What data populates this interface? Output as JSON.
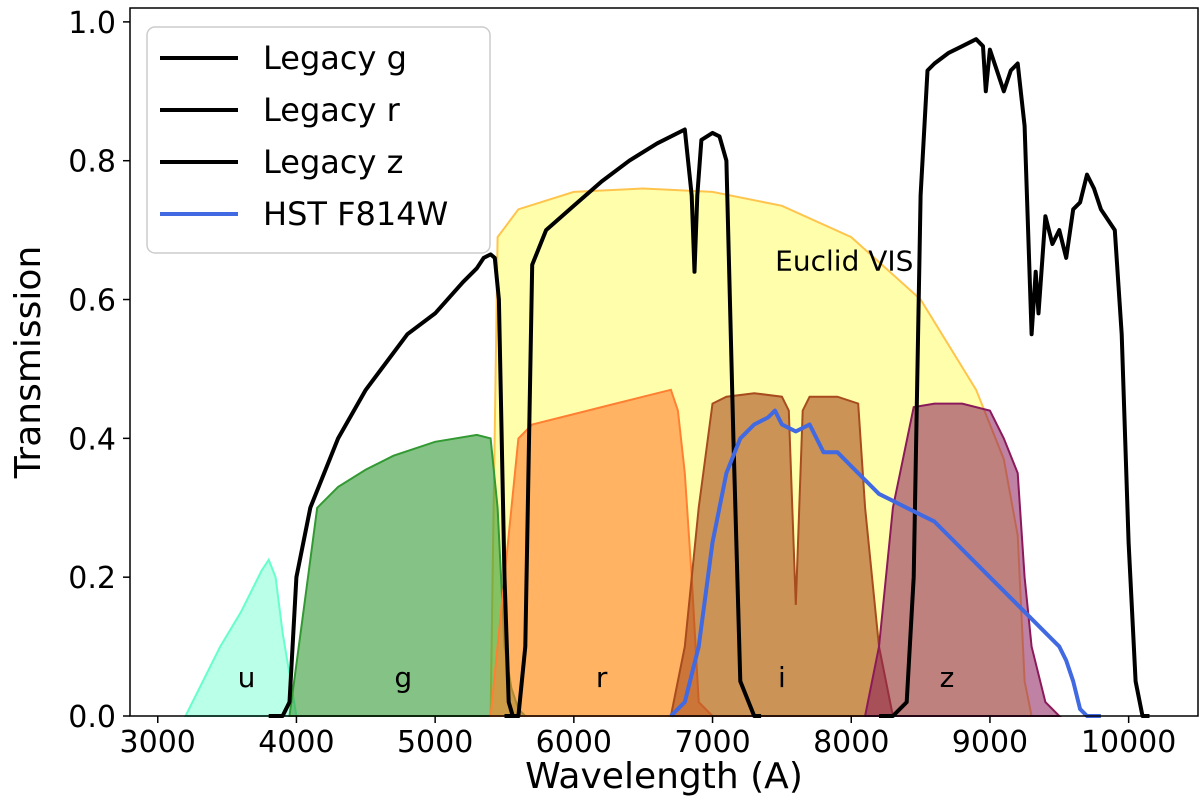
{
  "chart_data": {
    "type": "line",
    "title": "",
    "xlabel": "Wavelength (A)",
    "ylabel": "Transmission",
    "xlim": [
      2800,
      10500
    ],
    "ylim": [
      0.0,
      1.02
    ],
    "xticks": [
      3000,
      4000,
      5000,
      6000,
      7000,
      8000,
      9000,
      10000
    ],
    "xtick_labels": [
      "3000",
      "4000",
      "5000",
      "6000",
      "7000",
      "8000",
      "9000",
      "10000"
    ],
    "yticks": [
      0.0,
      0.2,
      0.4,
      0.6,
      0.8,
      1.0
    ],
    "ytick_labels": [
      "0.0",
      "0.2",
      "0.4",
      "0.6",
      "0.8",
      "1.0"
    ],
    "legend": {
      "placement": "top-left",
      "entries": [
        {
          "name": "Legacy g",
          "color": "#000000"
        },
        {
          "name": "Legacy r",
          "color": "#000000"
        },
        {
          "name": "Legacy z",
          "color": "#000000"
        },
        {
          "name": "HST F814W",
          "color": "#4169e1"
        }
      ]
    },
    "filled_bands": [
      {
        "name": "Euclid VIS",
        "label": "Euclid VIS",
        "fill": "#ffff66",
        "stroke": "#ffc44d",
        "alpha": 0.55,
        "label_at": [
          7950,
          0.63
        ],
        "x": [
          5400,
          5450,
          5600,
          6000,
          6500,
          7000,
          7500,
          8000,
          8500,
          8900,
          9100,
          9200,
          9250,
          9300
        ],
        "y": [
          0.0,
          0.69,
          0.73,
          0.755,
          0.76,
          0.755,
          0.735,
          0.69,
          0.6,
          0.47,
          0.37,
          0.26,
          0.05,
          0.0
        ]
      },
      {
        "name": "u",
        "label": "u",
        "fill": "#66ffcc",
        "stroke": "#66ffcc",
        "alpha": 0.45,
        "label_at": [
          3640,
          0.03
        ],
        "x": [
          3200,
          3300,
          3450,
          3600,
          3750,
          3800,
          3850,
          3900,
          4000
        ],
        "y": [
          0.0,
          0.04,
          0.1,
          0.15,
          0.21,
          0.225,
          0.2,
          0.12,
          0.0
        ]
      },
      {
        "name": "g",
        "label": "g",
        "fill": "#339933",
        "stroke": "#339933",
        "alpha": 0.6,
        "label_at": [
          4770,
          0.03
        ],
        "x": [
          3950,
          4050,
          4150,
          4300,
          4500,
          4700,
          5000,
          5300,
          5400,
          5450,
          5500,
          5550,
          5600,
          5650
        ],
        "y": [
          0.0,
          0.15,
          0.3,
          0.33,
          0.355,
          0.375,
          0.395,
          0.405,
          0.4,
          0.3,
          0.1,
          0.04,
          0.01,
          0.0
        ]
      },
      {
        "name": "r",
        "label": "r",
        "fill": "#ff8033",
        "stroke": "#ff8033",
        "alpha": 0.6,
        "label_at": [
          6200,
          0.03
        ],
        "x": [
          5400,
          5500,
          5600,
          5700,
          6000,
          6300,
          6500,
          6700,
          6750,
          6800,
          6850,
          6900,
          7000
        ],
        "y": [
          0.0,
          0.2,
          0.4,
          0.42,
          0.435,
          0.45,
          0.46,
          0.47,
          0.44,
          0.35,
          0.2,
          0.02,
          0.0
        ]
      },
      {
        "name": "i",
        "label": "i",
        "fill": "#a84b1e",
        "stroke": "#a84b1e",
        "alpha": 0.6,
        "label_at": [
          7500,
          0.03
        ],
        "x": [
          6700,
          6800,
          6900,
          7000,
          7100,
          7300,
          7500,
          7550,
          7600,
          7650,
          7700,
          7900,
          8050,
          8100,
          8200,
          8300
        ],
        "y": [
          0.0,
          0.1,
          0.3,
          0.45,
          0.46,
          0.465,
          0.46,
          0.44,
          0.16,
          0.44,
          0.46,
          0.46,
          0.45,
          0.3,
          0.1,
          0.0
        ]
      },
      {
        "name": "z",
        "label": "z",
        "fill": "#8b1a5a",
        "stroke": "#8b1a5a",
        "alpha": 0.55,
        "label_at": [
          8690,
          0.03
        ],
        "x": [
          8100,
          8200,
          8300,
          8450,
          8600,
          8800,
          9000,
          9100,
          9200,
          9250,
          9300,
          9400,
          9500
        ],
        "y": [
          0.0,
          0.1,
          0.3,
          0.445,
          0.45,
          0.45,
          0.44,
          0.4,
          0.35,
          0.2,
          0.1,
          0.02,
          0.0
        ]
      }
    ],
    "series": [
      {
        "name": "Legacy g",
        "color": "#000000",
        "x": [
          3800,
          3900,
          3950,
          4000,
          4100,
          4300,
          4500,
          4800,
          5000,
          5200,
          5300,
          5350,
          5400,
          5430,
          5460,
          5500,
          5530,
          5560,
          5600
        ],
        "y": [
          0.0,
          0.0,
          0.02,
          0.2,
          0.3,
          0.4,
          0.47,
          0.55,
          0.58,
          0.625,
          0.645,
          0.66,
          0.665,
          0.66,
          0.6,
          0.2,
          0.02,
          0.0,
          0.0
        ]
      },
      {
        "name": "Legacy r",
        "color": "#000000",
        "x": [
          5500,
          5600,
          5650,
          5700,
          5800,
          6000,
          6200,
          6400,
          6600,
          6800,
          6850,
          6870,
          6890,
          6920,
          7000,
          7050,
          7100,
          7150,
          7200,
          7300,
          7350
        ],
        "y": [
          0.0,
          0.0,
          0.1,
          0.65,
          0.7,
          0.735,
          0.77,
          0.8,
          0.825,
          0.845,
          0.75,
          0.64,
          0.75,
          0.83,
          0.84,
          0.835,
          0.8,
          0.4,
          0.05,
          0.0,
          0.0
        ]
      },
      {
        "name": "Legacy z",
        "color": "#000000",
        "x": [
          8200,
          8300,
          8400,
          8450,
          8500,
          8550,
          8600,
          8700,
          8800,
          8900,
          8950,
          8970,
          9000,
          9050,
          9100,
          9150,
          9200,
          9250,
          9300,
          9330,
          9350,
          9400,
          9450,
          9500,
          9550,
          9600,
          9650,
          9700,
          9750,
          9800,
          9900,
          9950,
          10000,
          10050,
          10100,
          10150
        ],
        "y": [
          0.0,
          0.0,
          0.02,
          0.2,
          0.75,
          0.93,
          0.94,
          0.955,
          0.965,
          0.975,
          0.965,
          0.9,
          0.96,
          0.93,
          0.9,
          0.93,
          0.94,
          0.85,
          0.55,
          0.64,
          0.58,
          0.72,
          0.68,
          0.7,
          0.66,
          0.73,
          0.74,
          0.78,
          0.76,
          0.73,
          0.7,
          0.55,
          0.25,
          0.05,
          0.0,
          0.0
        ]
      },
      {
        "name": "HST F814W",
        "color": "#4169e1",
        "x": [
          6700,
          6800,
          6900,
          7000,
          7100,
          7200,
          7300,
          7400,
          7450,
          7500,
          7600,
          7700,
          7800,
          7900,
          8000,
          8200,
          8400,
          8600,
          8800,
          9000,
          9200,
          9400,
          9500,
          9550,
          9600,
          9650,
          9700,
          9800
        ],
        "y": [
          0.0,
          0.02,
          0.1,
          0.25,
          0.35,
          0.4,
          0.42,
          0.43,
          0.44,
          0.42,
          0.41,
          0.42,
          0.38,
          0.38,
          0.36,
          0.32,
          0.3,
          0.28,
          0.24,
          0.2,
          0.16,
          0.12,
          0.1,
          0.08,
          0.05,
          0.01,
          0.0,
          0.0
        ]
      }
    ]
  }
}
